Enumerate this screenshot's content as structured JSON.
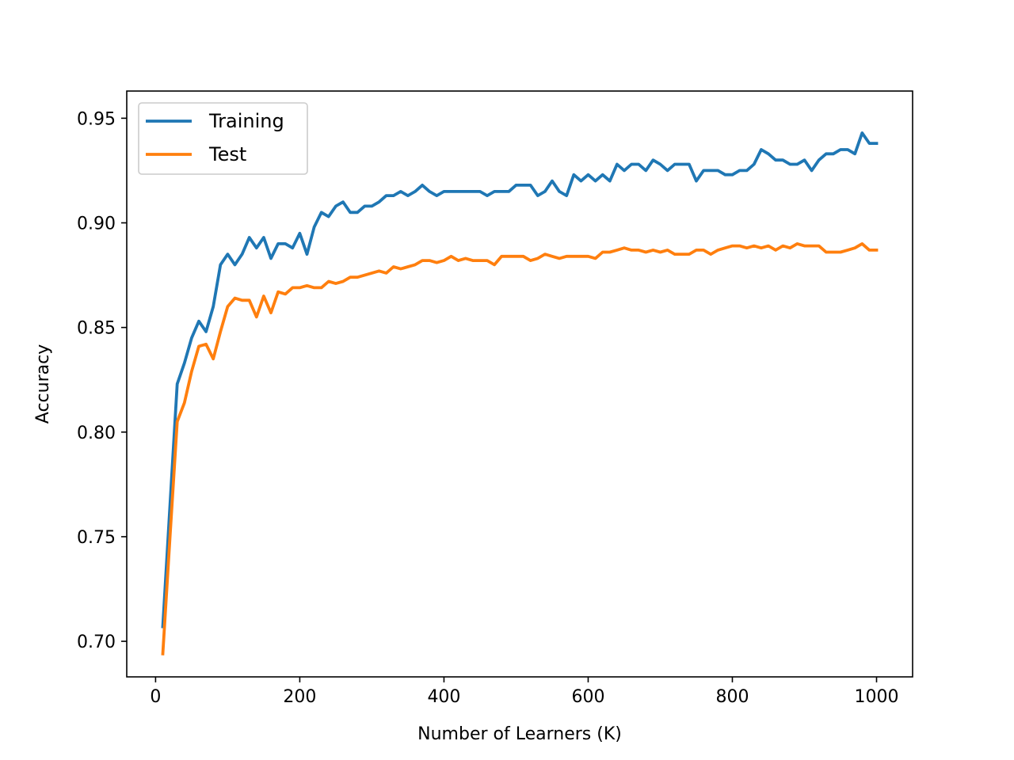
{
  "chart_data": {
    "type": "line",
    "title": "",
    "xlabel": "Number of Learners (K)",
    "ylabel": "Accuracy",
    "xlim": [
      -40,
      1050
    ],
    "ylim": [
      0.683,
      0.963
    ],
    "xticks": [
      0,
      200,
      400,
      600,
      800,
      1000
    ],
    "xtick_labels": [
      "0",
      "200",
      "400",
      "600",
      "800",
      "1000"
    ],
    "yticks": [
      0.7,
      0.75,
      0.8,
      0.85,
      0.9,
      0.95
    ],
    "ytick_labels": [
      "0.70",
      "0.75",
      "0.80",
      "0.85",
      "0.90",
      "0.95"
    ],
    "grid": false,
    "legend_position": "top-left",
    "x": [
      10,
      20,
      30,
      40,
      50,
      60,
      70,
      80,
      90,
      100,
      110,
      120,
      130,
      140,
      150,
      160,
      170,
      180,
      190,
      200,
      210,
      220,
      230,
      240,
      250,
      260,
      270,
      280,
      290,
      300,
      310,
      320,
      330,
      340,
      350,
      360,
      370,
      380,
      390,
      400,
      410,
      420,
      430,
      440,
      450,
      460,
      470,
      480,
      490,
      500,
      510,
      520,
      530,
      540,
      550,
      560,
      570,
      580,
      590,
      600,
      610,
      620,
      630,
      640,
      650,
      660,
      670,
      680,
      690,
      700,
      710,
      720,
      730,
      740,
      750,
      760,
      770,
      780,
      790,
      800,
      810,
      820,
      830,
      840,
      850,
      860,
      870,
      880,
      890,
      900,
      910,
      920,
      930,
      940,
      950,
      960,
      970,
      980,
      990,
      1000
    ],
    "series": [
      {
        "name": "Training",
        "color": "#1f77b4",
        "values": [
          0.707,
          0.765,
          0.823,
          0.833,
          0.845,
          0.853,
          0.848,
          0.86,
          0.88,
          0.885,
          0.88,
          0.885,
          0.893,
          0.888,
          0.893,
          0.883,
          0.89,
          0.89,
          0.888,
          0.895,
          0.885,
          0.898,
          0.905,
          0.903,
          0.908,
          0.91,
          0.905,
          0.905,
          0.908,
          0.908,
          0.91,
          0.913,
          0.913,
          0.915,
          0.913,
          0.915,
          0.918,
          0.915,
          0.913,
          0.915,
          0.915,
          0.915,
          0.915,
          0.915,
          0.915,
          0.913,
          0.915,
          0.915,
          0.915,
          0.918,
          0.918,
          0.918,
          0.913,
          0.915,
          0.92,
          0.915,
          0.913,
          0.923,
          0.92,
          0.923,
          0.92,
          0.923,
          0.92,
          0.928,
          0.925,
          0.928,
          0.928,
          0.925,
          0.93,
          0.928,
          0.925,
          0.928,
          0.928,
          0.928,
          0.92,
          0.925,
          0.925,
          0.925,
          0.923,
          0.923,
          0.925,
          0.925,
          0.928,
          0.935,
          0.933,
          0.93,
          0.93,
          0.928,
          0.928,
          0.93,
          0.925,
          0.93,
          0.933,
          0.933,
          0.935,
          0.935,
          0.933,
          0.943,
          0.938,
          0.938
        ]
      },
      {
        "name": "Test",
        "color": "#ff7f0e",
        "values": [
          0.694,
          0.75,
          0.805,
          0.814,
          0.829,
          0.841,
          0.842,
          0.835,
          0.848,
          0.86,
          0.864,
          0.863,
          0.863,
          0.855,
          0.865,
          0.857,
          0.867,
          0.866,
          0.869,
          0.869,
          0.87,
          0.869,
          0.869,
          0.872,
          0.871,
          0.872,
          0.874,
          0.874,
          0.875,
          0.876,
          0.877,
          0.876,
          0.879,
          0.878,
          0.879,
          0.88,
          0.882,
          0.882,
          0.881,
          0.882,
          0.884,
          0.882,
          0.883,
          0.882,
          0.882,
          0.882,
          0.88,
          0.884,
          0.884,
          0.884,
          0.884,
          0.882,
          0.883,
          0.885,
          0.884,
          0.883,
          0.884,
          0.884,
          0.884,
          0.884,
          0.883,
          0.886,
          0.886,
          0.887,
          0.888,
          0.887,
          0.887,
          0.886,
          0.887,
          0.886,
          0.887,
          0.885,
          0.885,
          0.885,
          0.887,
          0.887,
          0.885,
          0.887,
          0.888,
          0.889,
          0.889,
          0.888,
          0.889,
          0.888,
          0.889,
          0.887,
          0.889,
          0.888,
          0.89,
          0.889,
          0.889,
          0.889,
          0.886,
          0.886,
          0.886,
          0.887,
          0.888,
          0.89,
          0.887,
          0.887
        ]
      }
    ]
  }
}
